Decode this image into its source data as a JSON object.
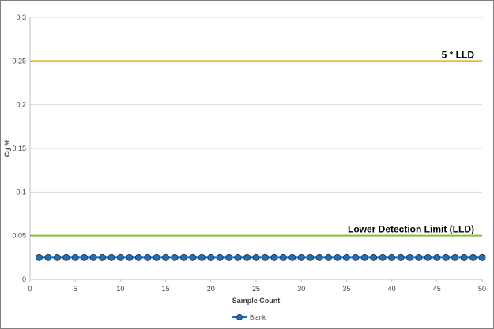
{
  "chart_data": {
    "type": "line",
    "title": "",
    "xlabel": "Sample Count",
    "ylabel": "Cg %",
    "xlim": [
      0,
      50
    ],
    "ylim": [
      0,
      0.3
    ],
    "xticks": [
      0,
      5,
      10,
      15,
      20,
      25,
      30,
      35,
      40,
      45,
      50
    ],
    "xtick_labels": [
      "0",
      "5",
      "10",
      "15",
      "20",
      "25",
      "30",
      "35",
      "40",
      "45",
      "50"
    ],
    "yticks": [
      0,
      0.05,
      0.1,
      0.15,
      0.2,
      0.25,
      0.3
    ],
    "ytick_labels": [
      "0",
      "0.05",
      "0.1",
      "0.15",
      "0.2",
      "0.25",
      "0.3"
    ],
    "grid": "horizontal",
    "legend_position": "bottom",
    "series": [
      {
        "name": "Blank",
        "color": "#1f6fb5",
        "marker_edge": "#1a3f66",
        "x": [
          1,
          2,
          3,
          4,
          5,
          6,
          7,
          8,
          9,
          10,
          11,
          12,
          13,
          14,
          15,
          16,
          17,
          18,
          19,
          20,
          21,
          22,
          23,
          24,
          25,
          26,
          27,
          28,
          29,
          30,
          31,
          32,
          33,
          34,
          35,
          36,
          37,
          38,
          39,
          40,
          41,
          42,
          43,
          44,
          45,
          46,
          47,
          48,
          49,
          50
        ],
        "values": [
          0.025,
          0.025,
          0.025,
          0.025,
          0.025,
          0.025,
          0.025,
          0.025,
          0.025,
          0.025,
          0.025,
          0.025,
          0.025,
          0.025,
          0.025,
          0.025,
          0.025,
          0.025,
          0.025,
          0.025,
          0.025,
          0.025,
          0.025,
          0.025,
          0.025,
          0.025,
          0.025,
          0.025,
          0.025,
          0.025,
          0.025,
          0.025,
          0.025,
          0.025,
          0.025,
          0.025,
          0.025,
          0.025,
          0.025,
          0.025,
          0.025,
          0.025,
          0.025,
          0.025,
          0.025,
          0.025,
          0.025,
          0.025,
          0.025,
          0.025
        ]
      }
    ],
    "reference_lines": [
      {
        "label": "5 * LLD",
        "value": 0.25,
        "color": "#f0b323"
      },
      {
        "label": "Lower Detection Limit (LLD)",
        "value": 0.05,
        "color": "#7ac143"
      }
    ]
  }
}
